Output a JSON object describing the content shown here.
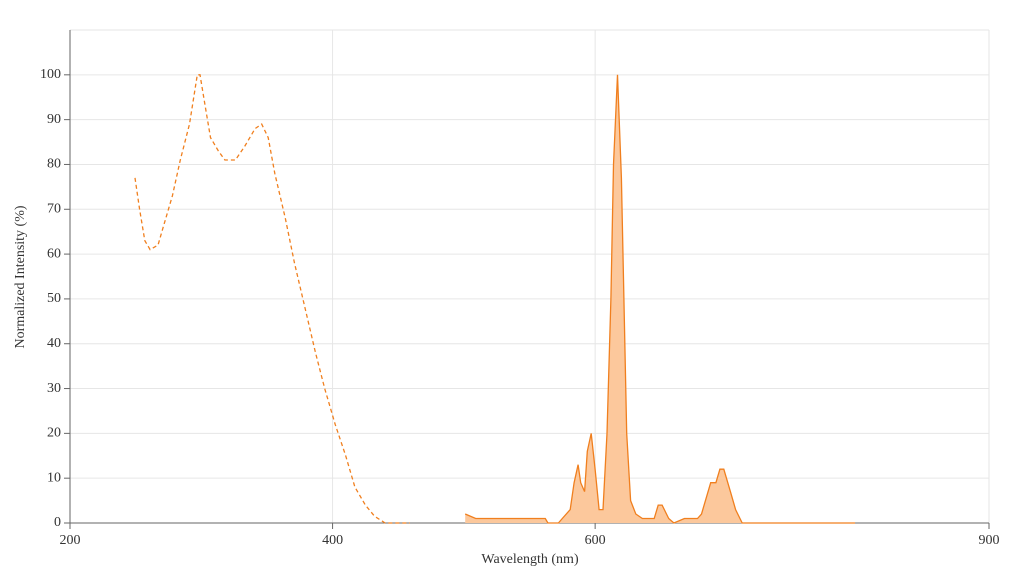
{
  "chart_data": {
    "type": "line",
    "xlabel": "Wavelength (nm)",
    "ylabel": "Normalized Intensity (%)",
    "xlim": [
      200,
      900
    ],
    "xticks": [
      200,
      400,
      600,
      900
    ],
    "ylim": [
      0,
      110
    ],
    "yticks": [
      0,
      10,
      20,
      30,
      40,
      50,
      60,
      70,
      80,
      90,
      100
    ],
    "grid": true,
    "series": [
      {
        "color": "#f07f1e",
        "dashed": true,
        "filled": false,
        "x": [
          249.5,
          253,
          257,
          261,
          267,
          272,
          278,
          284,
          291,
          297,
          299,
          303,
          307,
          313,
          318,
          326,
          333,
          341,
          346,
          351,
          356,
          364,
          371,
          379,
          387,
          394,
          402,
          410,
          417,
          425,
          432,
          440,
          459
        ],
        "values": [
          77,
          70,
          63,
          61,
          62,
          67,
          73,
          81,
          89,
          100,
          100,
          93,
          86,
          83,
          81,
          81,
          84,
          88,
          89,
          86,
          78,
          68,
          58,
          48,
          38,
          30,
          22,
          15,
          8,
          4,
          1.5,
          0,
          0
        ]
      },
      {
        "color": "#f07f1e",
        "dashed": false,
        "filled": true,
        "fill_color": "#fcc89c",
        "x": [
          501,
          509,
          562,
          564,
          572,
          575,
          581,
          584,
          587,
          589,
          592,
          594,
          597,
          600,
          603,
          606,
          609,
          612,
          614,
          617,
          620,
          624,
          627,
          631,
          636,
          645,
          648,
          651,
          656,
          660,
          668,
          678,
          681,
          688,
          692,
          695,
          698,
          703,
          707,
          712,
          798
        ],
        "values": [
          2,
          1,
          1,
          0,
          0,
          1,
          3,
          9,
          13,
          9,
          7,
          16,
          20,
          12,
          3,
          3,
          20,
          50,
          80,
          100,
          77,
          20,
          5,
          2,
          1,
          1,
          4,
          4,
          1,
          0,
          1,
          1,
          2,
          9,
          9,
          12,
          12,
          7,
          3,
          0,
          0
        ]
      }
    ]
  }
}
